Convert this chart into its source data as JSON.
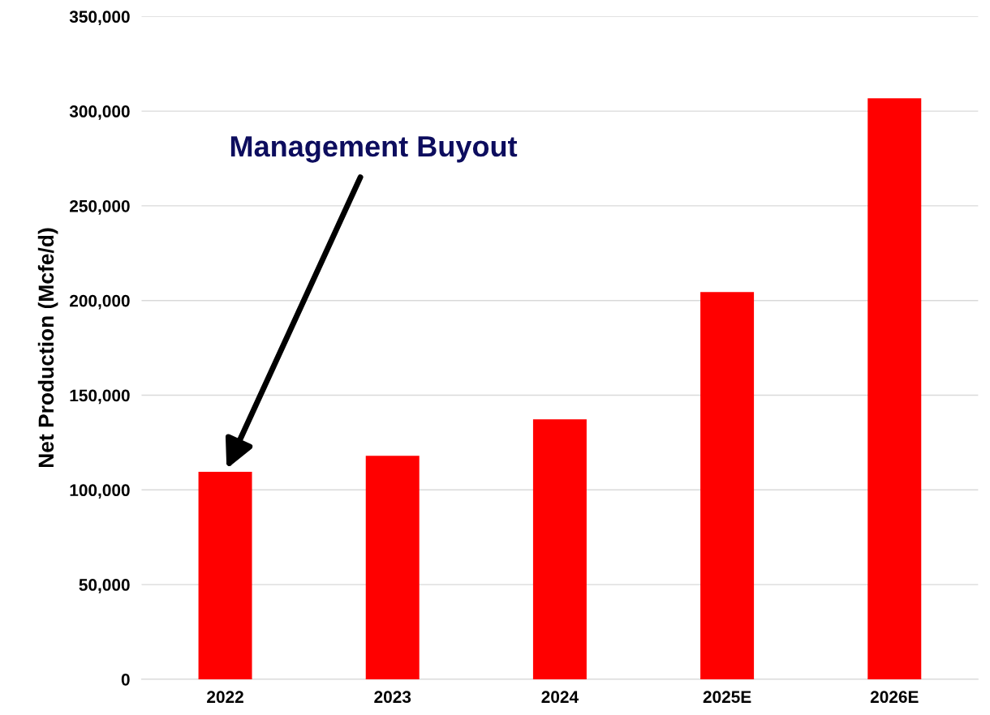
{
  "chart_data": {
    "type": "bar",
    "ylabel": "Net Production (Mcfe/d)",
    "categories": [
      "2022",
      "2023",
      "2024",
      "2025E",
      "2026E"
    ],
    "values": [
      109500,
      118000,
      137300,
      204500,
      306800
    ],
    "color": "#ff0000",
    "ylim": [
      0,
      350000
    ],
    "yticks": [
      {
        "value": 0,
        "label": "0"
      },
      {
        "value": 50000,
        "label": "50,000"
      },
      {
        "value": 100000,
        "label": "100,000"
      },
      {
        "value": 150000,
        "label": "150,000"
      },
      {
        "value": 200000,
        "label": "200,000"
      },
      {
        "value": 250000,
        "label": "250,000"
      },
      {
        "value": 300000,
        "label": "300,000"
      },
      {
        "value": 350000,
        "label": "350,000"
      }
    ],
    "grid": "y",
    "annotations": [
      "Management Buyout"
    ]
  }
}
